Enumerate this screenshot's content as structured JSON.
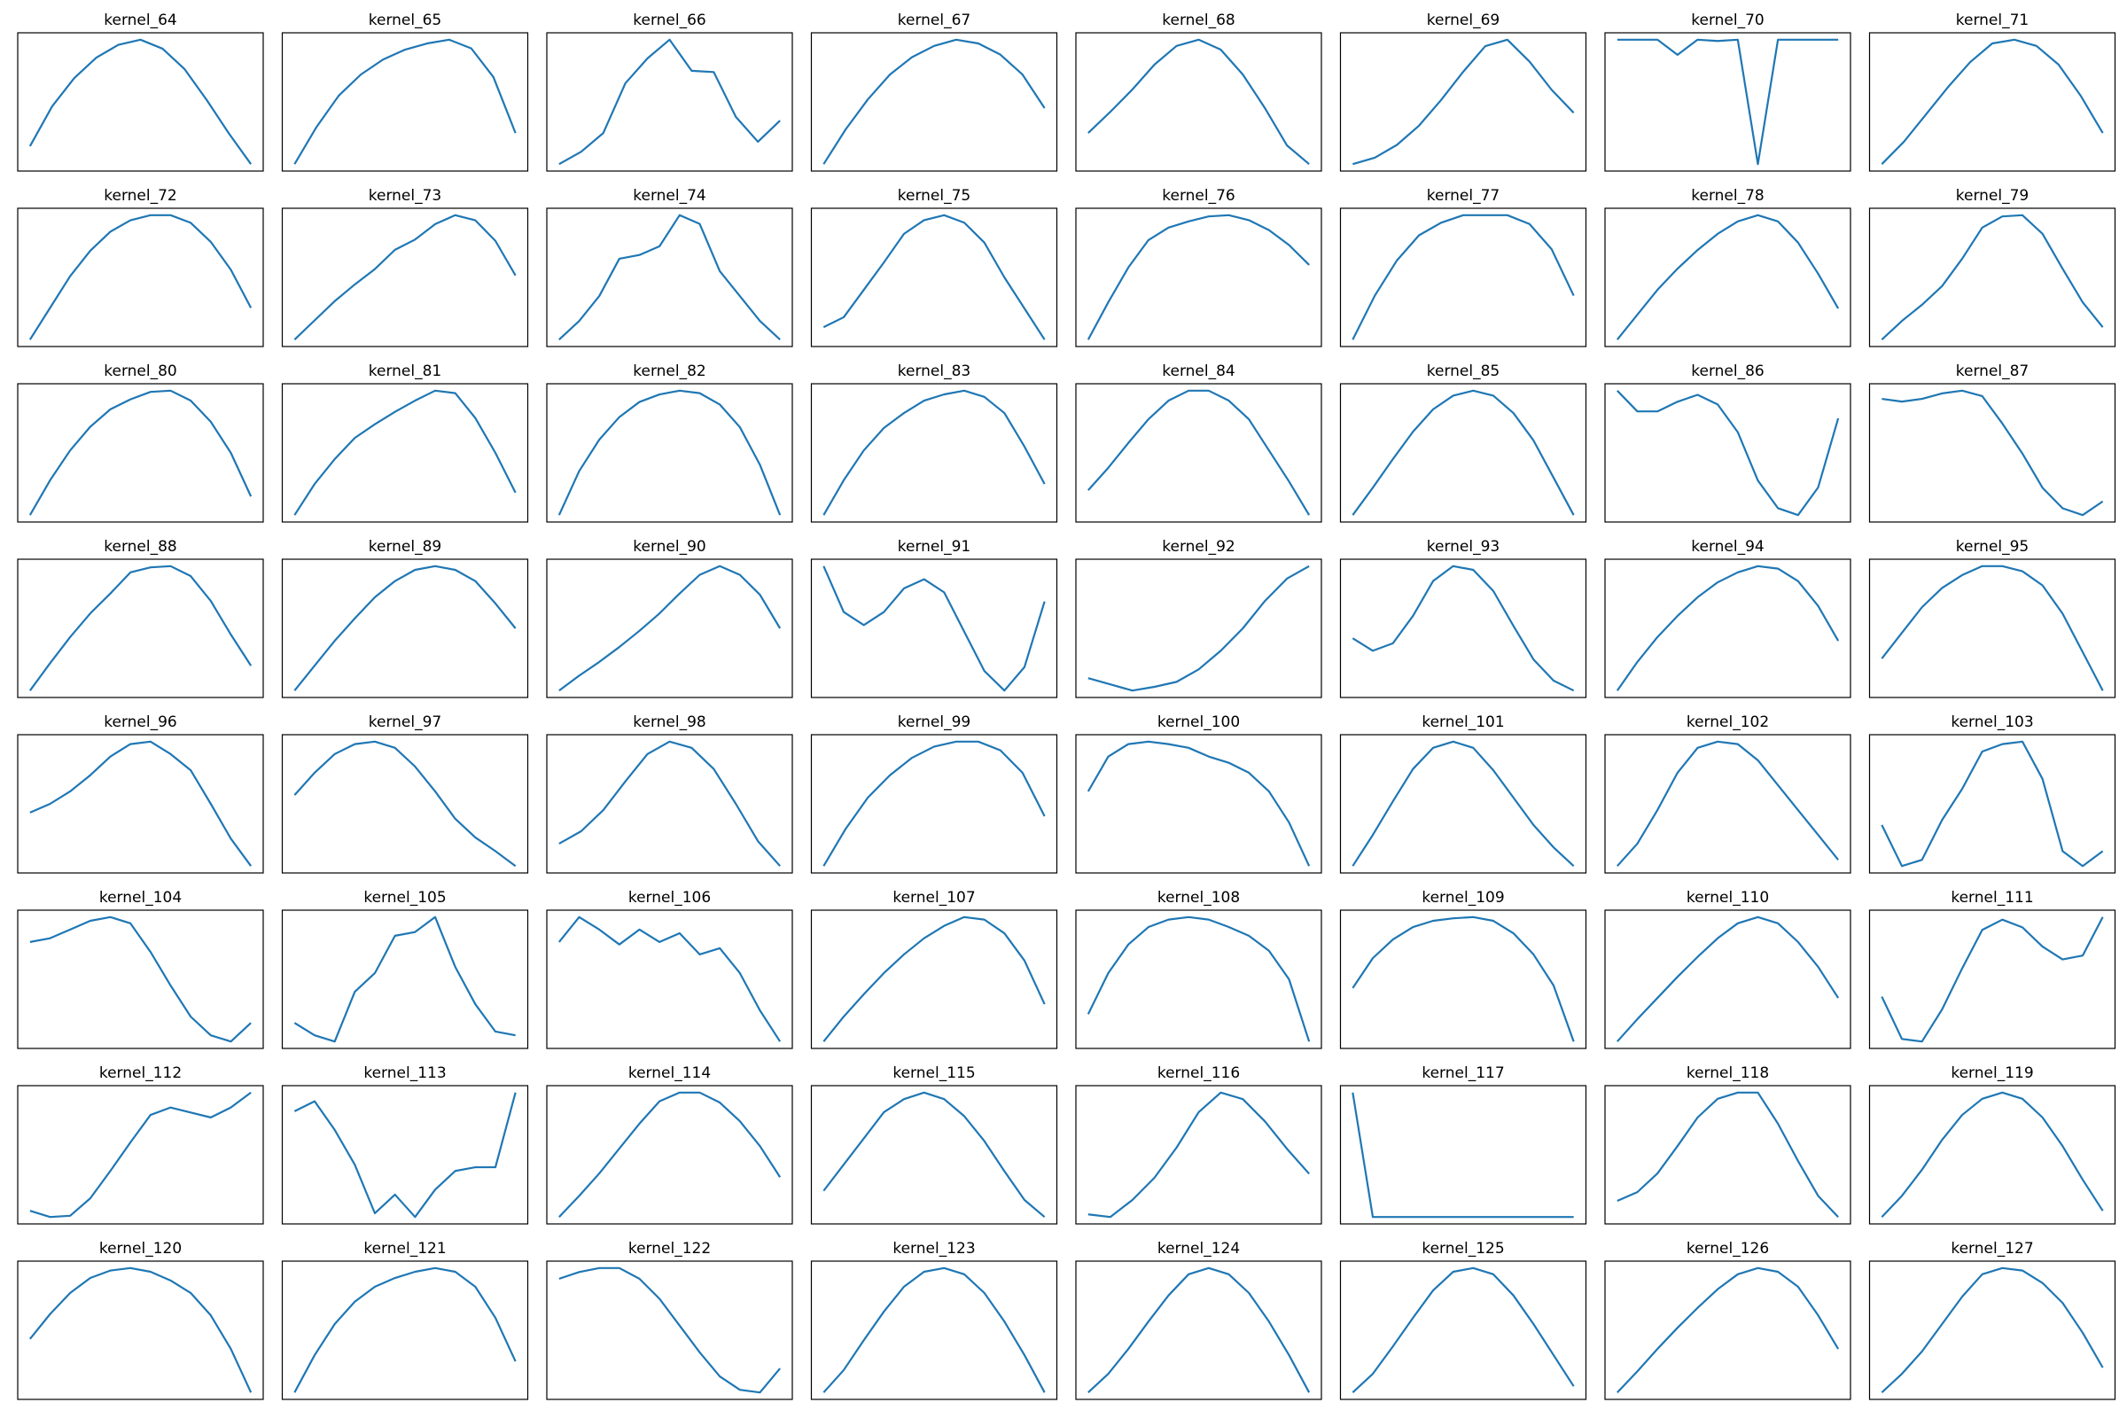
{
  "chart_data": [
    {
      "type": "line",
      "title": "kernel_64",
      "color": "#1f77b4",
      "values": [
        14,
        45,
        67,
        83,
        93,
        97,
        90,
        74,
        50,
        24,
        0
      ]
    },
    {
      "type": "line",
      "title": "kernel_65",
      "color": "#1f77b4",
      "values": [
        0,
        30,
        55,
        72,
        84,
        92,
        97,
        100,
        93,
        70,
        25
      ]
    },
    {
      "type": "line",
      "title": "kernel_66",
      "color": "#1f77b4",
      "values": [
        0,
        10,
        25,
        65,
        85,
        100,
        75,
        74,
        38,
        18,
        35
      ]
    },
    {
      "type": "line",
      "title": "kernel_67",
      "color": "#1f77b4",
      "values": [
        0,
        28,
        52,
        72,
        86,
        95,
        100,
        97,
        88,
        72,
        45
      ]
    },
    {
      "type": "line",
      "title": "kernel_68",
      "color": "#1f77b4",
      "values": [
        25,
        42,
        60,
        80,
        95,
        100,
        92,
        72,
        45,
        15,
        0
      ]
    },
    {
      "type": "line",
      "title": "kernel_69",
      "color": "#1f77b4",
      "values": [
        0,
        5,
        15,
        30,
        50,
        72,
        92,
        97,
        80,
        58,
        40
      ]
    },
    {
      "type": "line",
      "title": "kernel_70",
      "color": "#1f77b4",
      "values": [
        99,
        99,
        99,
        87,
        99,
        98,
        99,
        0,
        99,
        99,
        99,
        99
      ]
    },
    {
      "type": "line",
      "title": "kernel_71",
      "color": "#1f77b4",
      "values": [
        0,
        18,
        40,
        62,
        82,
        97,
        100,
        95,
        80,
        55,
        25
      ]
    },
    {
      "type": "line",
      "title": "kernel_72",
      "color": "#1f77b4",
      "values": [
        0,
        25,
        50,
        70,
        85,
        94,
        98,
        98,
        92,
        77,
        55,
        25
      ]
    },
    {
      "type": "line",
      "title": "kernel_73",
      "color": "#1f77b4",
      "values": [
        0,
        15,
        30,
        43,
        55,
        70,
        78,
        90,
        97,
        93,
        77,
        50
      ]
    },
    {
      "type": "line",
      "title": "kernel_74",
      "color": "#1f77b4",
      "values": [
        0,
        15,
        35,
        65,
        68,
        75,
        100,
        93,
        55,
        35,
        15,
        0
      ]
    },
    {
      "type": "line",
      "title": "kernel_75",
      "color": "#1f77b4",
      "values": [
        10,
        18,
        40,
        62,
        85,
        96,
        100,
        94,
        78,
        50,
        25,
        0
      ]
    },
    {
      "type": "line",
      "title": "kernel_76",
      "color": "#1f77b4",
      "values": [
        0,
        30,
        58,
        80,
        90,
        95,
        99,
        100,
        96,
        88,
        76,
        60
      ]
    },
    {
      "type": "line",
      "title": "kernel_77",
      "color": "#1f77b4",
      "values": [
        0,
        35,
        63,
        83,
        93,
        99,
        99,
        99,
        92,
        72,
        35
      ]
    },
    {
      "type": "line",
      "title": "kernel_78",
      "color": "#1f77b4",
      "values": [
        0,
        20,
        40,
        57,
        72,
        85,
        95,
        100,
        95,
        78,
        53,
        25
      ]
    },
    {
      "type": "line",
      "title": "kernel_79",
      "color": "#1f77b4",
      "values": [
        0,
        15,
        28,
        43,
        65,
        90,
        99,
        100,
        85,
        57,
        30,
        10
      ]
    },
    {
      "type": "line",
      "title": "kernel_80",
      "color": "#1f77b4",
      "values": [
        0,
        28,
        52,
        71,
        85,
        93,
        99,
        100,
        92,
        75,
        50,
        15
      ]
    },
    {
      "type": "line",
      "title": "kernel_81",
      "color": "#1f77b4",
      "values": [
        0,
        25,
        45,
        62,
        73,
        83,
        92,
        100,
        98,
        78,
        50,
        18
      ]
    },
    {
      "type": "line",
      "title": "kernel_82",
      "color": "#1f77b4",
      "values": [
        0,
        35,
        60,
        78,
        90,
        96,
        99,
        97,
        88,
        70,
        40,
        0
      ]
    },
    {
      "type": "line",
      "title": "kernel_83",
      "color": "#1f77b4",
      "values": [
        0,
        28,
        52,
        70,
        82,
        92,
        97,
        100,
        95,
        82,
        55,
        25
      ]
    },
    {
      "type": "line",
      "title": "kernel_84",
      "color": "#1f77b4",
      "values": [
        20,
        38,
        58,
        77,
        92,
        100,
        100,
        92,
        77,
        52,
        27,
        0
      ]
    },
    {
      "type": "line",
      "title": "kernel_85",
      "color": "#1f77b4",
      "values": [
        0,
        22,
        45,
        67,
        85,
        96,
        100,
        96,
        82,
        60,
        30,
        0
      ]
    },
    {
      "type": "line",
      "title": "kernel_86",
      "color": "#1f77b4",
      "values": [
        90,
        75,
        75,
        82,
        87,
        80,
        60,
        25,
        5,
        0,
        20,
        70
      ]
    },
    {
      "type": "line",
      "title": "kernel_87",
      "color": "#1f77b4",
      "values": [
        85,
        83,
        85,
        89,
        91,
        87,
        67,
        45,
        20,
        5,
        0,
        10
      ]
    },
    {
      "type": "line",
      "title": "kernel_88",
      "color": "#1f77b4",
      "values": [
        0,
        22,
        43,
        62,
        78,
        95,
        99,
        100,
        92,
        72,
        45,
        20
      ]
    },
    {
      "type": "line",
      "title": "kernel_89",
      "color": "#1f77b4",
      "values": [
        0,
        20,
        40,
        58,
        75,
        88,
        97,
        100,
        97,
        88,
        70,
        50
      ]
    },
    {
      "type": "line",
      "title": "kernel_90",
      "color": "#1f77b4",
      "values": [
        0,
        12,
        23,
        35,
        48,
        62,
        78,
        93,
        100,
        93,
        77,
        50
      ]
    },
    {
      "type": "line",
      "title": "kernel_91",
      "color": "#1f77b4",
      "values": [
        95,
        60,
        50,
        60,
        78,
        85,
        75,
        45,
        15,
        0,
        18,
        68
      ]
    },
    {
      "type": "line",
      "title": "kernel_92",
      "color": "#1f77b4",
      "values": [
        10,
        5,
        0,
        3,
        7,
        17,
        32,
        50,
        72,
        90,
        100
      ]
    },
    {
      "type": "line",
      "title": "kernel_93",
      "color": "#1f77b4",
      "values": [
        42,
        32,
        38,
        60,
        88,
        100,
        97,
        80,
        52,
        25,
        8,
        0
      ]
    },
    {
      "type": "line",
      "title": "kernel_94",
      "color": "#1f77b4",
      "values": [
        0,
        23,
        43,
        60,
        75,
        87,
        95,
        100,
        98,
        88,
        68,
        40
      ]
    },
    {
      "type": "line",
      "title": "kernel_95",
      "color": "#1f77b4",
      "values": [
        25,
        45,
        65,
        80,
        90,
        97,
        97,
        93,
        82,
        60,
        30,
        0
      ]
    },
    {
      "type": "line",
      "title": "kernel_96",
      "color": "#1f77b4",
      "values": [
        43,
        50,
        60,
        73,
        88,
        98,
        100,
        90,
        77,
        50,
        22,
        0
      ]
    },
    {
      "type": "line",
      "title": "kernel_97",
      "color": "#1f77b4",
      "values": [
        57,
        75,
        90,
        98,
        100,
        95,
        80,
        60,
        38,
        23,
        12,
        0
      ]
    },
    {
      "type": "line",
      "title": "kernel_98",
      "color": "#1f77b4",
      "values": [
        18,
        28,
        45,
        68,
        90,
        100,
        95,
        78,
        50,
        20,
        0
      ]
    },
    {
      "type": "line",
      "title": "kernel_99",
      "color": "#1f77b4",
      "values": [
        0,
        30,
        55,
        73,
        87,
        96,
        100,
        100,
        93,
        75,
        40
      ]
    },
    {
      "type": "line",
      "title": "kernel_100",
      "color": "#1f77b4",
      "values": [
        60,
        88,
        98,
        100,
        98,
        95,
        88,
        83,
        75,
        60,
        35,
        0
      ]
    },
    {
      "type": "line",
      "title": "kernel_101",
      "color": "#1f77b4",
      "values": [
        0,
        25,
        52,
        78,
        95,
        100,
        95,
        77,
        55,
        33,
        15,
        0
      ]
    },
    {
      "type": "line",
      "title": "kernel_102",
      "color": "#1f77b4",
      "values": [
        0,
        18,
        45,
        75,
        95,
        100,
        98,
        85,
        65,
        45,
        25,
        5
      ]
    },
    {
      "type": "line",
      "title": "kernel_103",
      "color": "#1f77b4",
      "values": [
        33,
        0,
        5,
        37,
        62,
        92,
        98,
        100,
        70,
        12,
        0,
        12
      ]
    },
    {
      "type": "line",
      "title": "kernel_104",
      "color": "#1f77b4",
      "values": [
        80,
        83,
        90,
        97,
        100,
        95,
        72,
        45,
        20,
        5,
        0,
        15
      ]
    },
    {
      "type": "line",
      "title": "kernel_105",
      "color": "#1f77b4",
      "values": [
        15,
        5,
        0,
        40,
        55,
        85,
        88,
        100,
        60,
        30,
        8,
        5
      ]
    },
    {
      "type": "line",
      "title": "kernel_106",
      "color": "#1f77b4",
      "values": [
        80,
        100,
        90,
        78,
        90,
        80,
        87,
        70,
        75,
        55,
        25,
        0
      ]
    },
    {
      "type": "line",
      "title": "kernel_107",
      "color": "#1f77b4",
      "values": [
        0,
        20,
        38,
        55,
        70,
        83,
        93,
        100,
        98,
        87,
        65,
        30
      ]
    },
    {
      "type": "line",
      "title": "kernel_108",
      "color": "#1f77b4",
      "values": [
        22,
        55,
        78,
        92,
        98,
        100,
        98,
        92,
        85,
        73,
        50,
        0
      ]
    },
    {
      "type": "line",
      "title": "kernel_109",
      "color": "#1f77b4",
      "values": [
        43,
        67,
        82,
        92,
        97,
        99,
        100,
        97,
        87,
        70,
        45,
        0
      ]
    },
    {
      "type": "line",
      "title": "kernel_110",
      "color": "#1f77b4",
      "values": [
        0,
        18,
        35,
        52,
        68,
        83,
        95,
        100,
        95,
        80,
        60,
        35
      ]
    },
    {
      "type": "line",
      "title": "kernel_111",
      "color": "#1f77b4",
      "values": [
        38,
        5,
        3,
        28,
        60,
        90,
        98,
        92,
        77,
        67,
        70,
        100
      ]
    },
    {
      "type": "line",
      "title": "kernel_112",
      "color": "#1f77b4",
      "values": [
        5,
        0,
        1,
        15,
        37,
        60,
        82,
        88,
        84,
        80,
        88,
        100
      ]
    },
    {
      "type": "line",
      "title": "kernel_113",
      "color": "#1f77b4",
      "values": [
        85,
        93,
        70,
        42,
        3,
        18,
        0,
        22,
        37,
        40,
        40,
        100
      ]
    },
    {
      "type": "line",
      "title": "kernel_114",
      "color": "#1f77b4",
      "values": [
        0,
        17,
        35,
        55,
        75,
        93,
        100,
        100,
        92,
        77,
        57,
        32
      ]
    },
    {
      "type": "line",
      "title": "kernel_115",
      "color": "#1f77b4",
      "values": [
        25,
        45,
        65,
        85,
        95,
        100,
        95,
        82,
        63,
        40,
        18,
        5
      ]
    },
    {
      "type": "line",
      "title": "kernel_116",
      "color": "#1f77b4",
      "values": [
        7,
        5,
        18,
        35,
        58,
        85,
        100,
        95,
        78,
        57,
        38
      ]
    },
    {
      "type": "line",
      "title": "kernel_117",
      "color": "#1f77b4",
      "values": [
        100,
        0,
        0,
        0,
        0,
        0,
        0,
        0,
        0,
        0,
        0,
        0
      ]
    },
    {
      "type": "line",
      "title": "kernel_118",
      "color": "#1f77b4",
      "values": [
        13,
        20,
        35,
        57,
        80,
        95,
        100,
        100,
        75,
        45,
        17,
        0
      ]
    },
    {
      "type": "line",
      "title": "kernel_119",
      "color": "#1f77b4",
      "values": [
        0,
        17,
        38,
        62,
        82,
        95,
        100,
        95,
        80,
        57,
        30,
        5
      ]
    },
    {
      "type": "line",
      "title": "kernel_120",
      "color": "#1f77b4",
      "values": [
        43,
        63,
        80,
        92,
        98,
        100,
        97,
        90,
        80,
        62,
        35,
        0
      ]
    },
    {
      "type": "line",
      "title": "kernel_121",
      "color": "#1f77b4",
      "values": [
        0,
        30,
        55,
        73,
        85,
        92,
        97,
        100,
        97,
        85,
        60,
        25
      ]
    },
    {
      "type": "line",
      "title": "kernel_122",
      "color": "#1f77b4",
      "values": [
        85,
        90,
        93,
        93,
        85,
        70,
        50,
        30,
        12,
        2,
        0,
        18
      ]
    },
    {
      "type": "line",
      "title": "kernel_123",
      "color": "#1f77b4",
      "values": [
        0,
        18,
        42,
        65,
        85,
        97,
        100,
        95,
        80,
        57,
        30,
        0
      ]
    },
    {
      "type": "line",
      "title": "kernel_124",
      "color": "#1f77b4",
      "values": [
        0,
        15,
        35,
        57,
        78,
        95,
        100,
        95,
        80,
        57,
        30,
        0
      ]
    },
    {
      "type": "line",
      "title": "kernel_125",
      "color": "#1f77b4",
      "values": [
        0,
        15,
        37,
        60,
        82,
        97,
        100,
        95,
        78,
        55,
        30,
        5
      ]
    },
    {
      "type": "line",
      "title": "kernel_126",
      "color": "#1f77b4",
      "values": [
        0,
        17,
        35,
        52,
        68,
        83,
        95,
        100,
        97,
        85,
        62,
        35
      ]
    },
    {
      "type": "line",
      "title": "kernel_127",
      "color": "#1f77b4",
      "values": [
        0,
        15,
        33,
        55,
        77,
        95,
        100,
        98,
        88,
        72,
        48,
        20
      ]
    }
  ]
}
